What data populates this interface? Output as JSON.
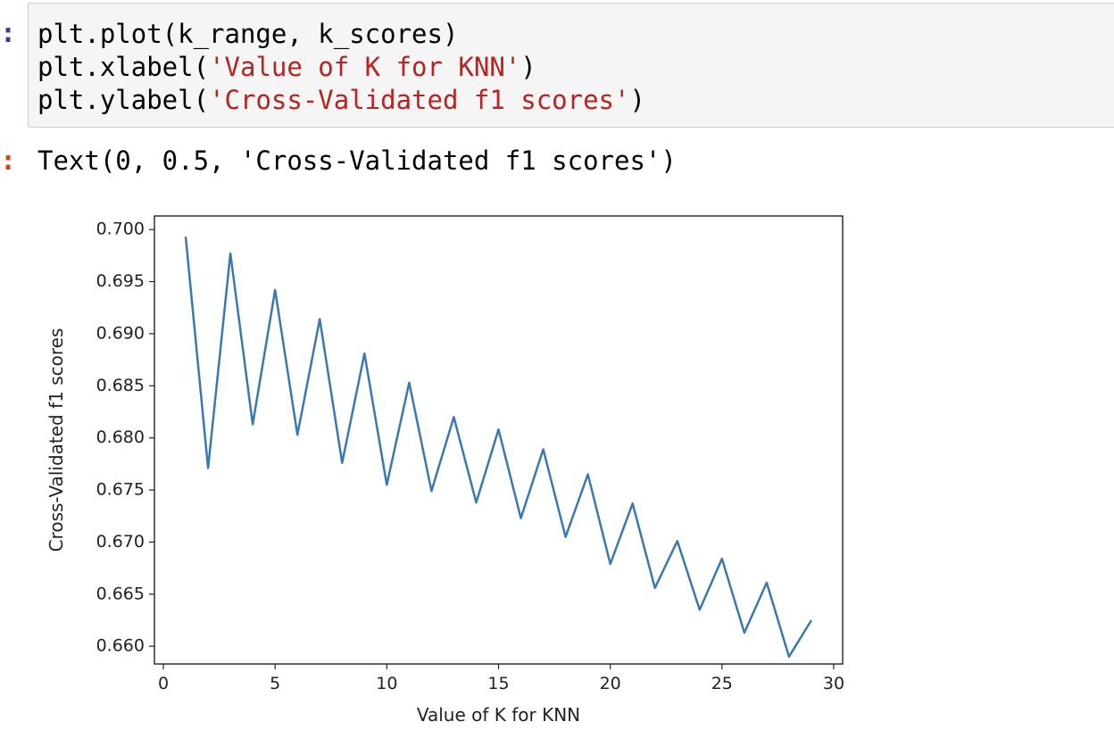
{
  "input_cell": {
    "prompt": ":",
    "lines": [
      {
        "pre": "plt.plot(k_range, k_scores)",
        "str": "",
        "post": ""
      },
      {
        "pre": "plt.xlabel(",
        "str": "'Value of K for KNN'",
        "post": ")"
      },
      {
        "pre": "plt.ylabel(",
        "str": "'Cross-Validated f1 scores'",
        "post": ")"
      }
    ]
  },
  "output_cell": {
    "prompt": ":",
    "text": "Text(0, 0.5, 'Cross-Validated f1 scores')"
  },
  "colors": {
    "line": "#3b78b1",
    "input_prompt": "#303f9f",
    "output_prompt": "#d84315",
    "string": "#ba2121"
  },
  "chart_data": {
    "type": "line",
    "xlabel": "Value of K for KNN",
    "ylabel": "Cross-Validated f1 scores",
    "xlim": [
      -0.4,
      30.4
    ],
    "ylim": [
      0.6583,
      0.7013
    ],
    "xticks": [
      0,
      5,
      10,
      15,
      20,
      25,
      30
    ],
    "xtick_labels": [
      "0",
      "5",
      "10",
      "15",
      "20",
      "25",
      "30"
    ],
    "yticks": [
      0.66,
      0.665,
      0.67,
      0.675,
      0.68,
      0.685,
      0.69,
      0.695,
      0.7
    ],
    "ytick_labels": [
      "0.660",
      "0.665",
      "0.670",
      "0.675",
      "0.680",
      "0.685",
      "0.690",
      "0.695",
      "0.700"
    ],
    "grid": false,
    "x": [
      1,
      2,
      3,
      4,
      5,
      6,
      7,
      8,
      9,
      10,
      11,
      12,
      13,
      14,
      15,
      16,
      17,
      18,
      19,
      20,
      21,
      22,
      23,
      24,
      25,
      26,
      27,
      28,
      29
    ],
    "y": [
      0.6993,
      0.6771,
      0.6977,
      0.6813,
      0.6942,
      0.6803,
      0.6914,
      0.6776,
      0.6881,
      0.6755,
      0.6853,
      0.6749,
      0.682,
      0.6738,
      0.6808,
      0.6723,
      0.6789,
      0.6705,
      0.6765,
      0.6679,
      0.6737,
      0.6656,
      0.6701,
      0.6635,
      0.6684,
      0.6613,
      0.6661,
      0.659,
      0.6625
    ]
  }
}
